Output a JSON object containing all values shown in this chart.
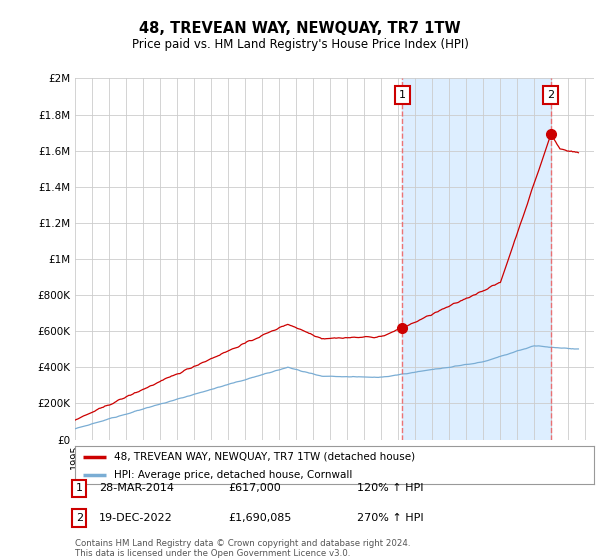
{
  "title": "48, TREVEAN WAY, NEWQUAY, TR7 1TW",
  "subtitle": "Price paid vs. HM Land Registry's House Price Index (HPI)",
  "ylim": [
    0,
    2000000
  ],
  "yticks": [
    0,
    200000,
    400000,
    600000,
    800000,
    1000000,
    1200000,
    1400000,
    1600000,
    1800000,
    2000000
  ],
  "ytick_labels": [
    "£0",
    "£200K",
    "£400K",
    "£600K",
    "£800K",
    "£1M",
    "£1.2M",
    "£1.4M",
    "£1.6M",
    "£1.8M",
    "£2M"
  ],
  "xlim_start": 1995.0,
  "xlim_end": 2025.5,
  "background_color": "#ffffff",
  "plot_bg_color": "#ffffff",
  "grid_color": "#cccccc",
  "red_line_color": "#cc0000",
  "blue_line_color": "#7aadd4",
  "shade_color": "#ddeeff",
  "transaction1_x": 2014.23,
  "transaction1_y": 617000,
  "transaction2_x": 2022.97,
  "transaction2_y": 1690085,
  "transaction1_label": "1",
  "transaction2_label": "2",
  "transaction1_date": "28-MAR-2014",
  "transaction1_price": "£617,000",
  "transaction1_hpi": "120% ↑ HPI",
  "transaction2_date": "19-DEC-2022",
  "transaction2_price": "£1,690,085",
  "transaction2_hpi": "270% ↑ HPI",
  "legend_line1": "48, TREVEAN WAY, NEWQUAY, TR7 1TW (detached house)",
  "legend_line2": "HPI: Average price, detached house, Cornwall",
  "footnote": "Contains HM Land Registry data © Crown copyright and database right 2024.\nThis data is licensed under the Open Government Licence v3.0."
}
